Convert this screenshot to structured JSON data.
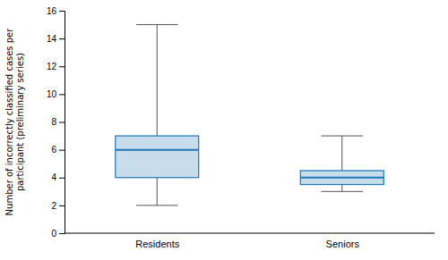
{
  "chart_data": {
    "type": "box",
    "categories": [
      "Residents",
      "Seniors"
    ],
    "values": [
      {
        "whislo": 2,
        "q1": 4,
        "med": 6,
        "q3": 7,
        "whishi": 15
      },
      {
        "whislo": 3,
        "q1": 3.5,
        "med": 4,
        "q3": 4.5,
        "whishi": 7
      }
    ],
    "ylabel": "Number of incorrectly classified cases per\nparticipant (preliminary series)",
    "ylim": [
      0,
      16
    ],
    "yticks": [
      0,
      2,
      4,
      6,
      8,
      10,
      12,
      14,
      16
    ],
    "grid": false
  }
}
